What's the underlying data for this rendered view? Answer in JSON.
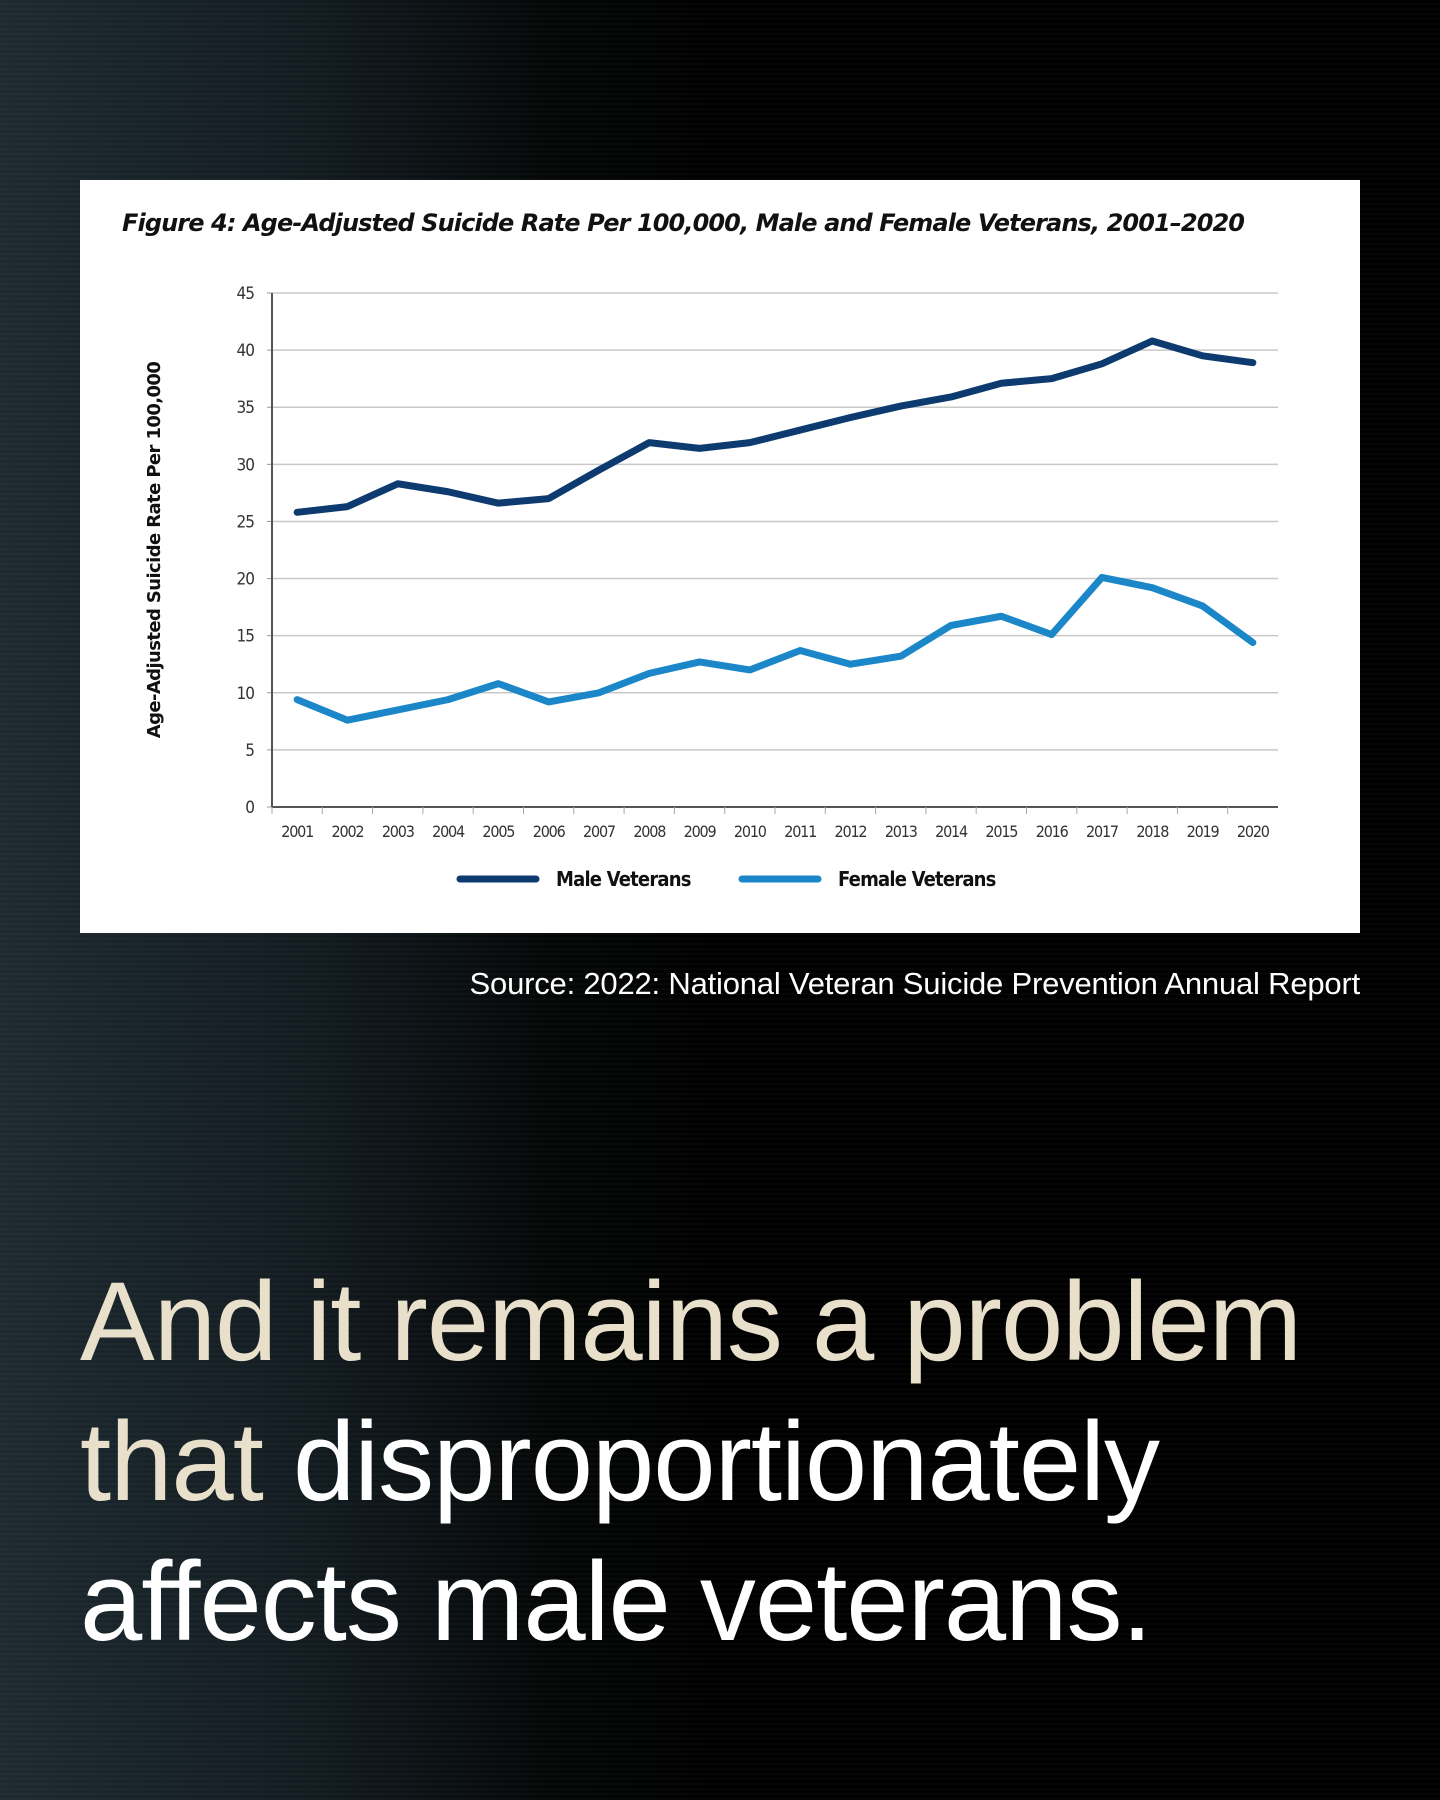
{
  "chart_data": {
    "type": "line",
    "title": "Figure 4: Age-Adjusted Suicide Rate Per 100,000, Male and Female Veterans, 2001–2020",
    "xlabel": "",
    "ylabel": "Age-Adjusted Suicide Rate Per 100,000",
    "ylim": [
      0,
      45
    ],
    "yticks": [
      0,
      5,
      10,
      15,
      20,
      25,
      30,
      35,
      40,
      45
    ],
    "grid": true,
    "legend_position": "bottom",
    "categories": [
      "2001",
      "2002",
      "2003",
      "2004",
      "2005",
      "2006",
      "2007",
      "2008",
      "2009",
      "2010",
      "2011",
      "2012",
      "2013",
      "2014",
      "2015",
      "2016",
      "2017",
      "2018",
      "2019",
      "2020"
    ],
    "series": [
      {
        "name": "Male Veterans",
        "color": "#0d3b70",
        "values": [
          25.8,
          26.3,
          28.3,
          27.6,
          26.6,
          27.0,
          29.5,
          31.9,
          31.4,
          31.9,
          33.0,
          34.1,
          35.1,
          35.9,
          37.1,
          37.5,
          38.8,
          40.8,
          39.5,
          38.9
        ]
      },
      {
        "name": "Female Veterans",
        "color": "#1b87c9",
        "values": [
          9.4,
          7.6,
          8.5,
          9.4,
          10.8,
          9.2,
          10.0,
          11.7,
          12.7,
          12.0,
          13.7,
          12.5,
          13.2,
          15.9,
          16.7,
          15.1,
          20.1,
          19.2,
          17.6,
          14.4
        ]
      }
    ]
  },
  "source": "Source: 2022: National Veteran Suicide Prevention Annual Report",
  "headline": {
    "line1": "And it remains a problem",
    "line2a": "that",
    "line2b": "disproportionately",
    "line3": "affects male veterans."
  }
}
